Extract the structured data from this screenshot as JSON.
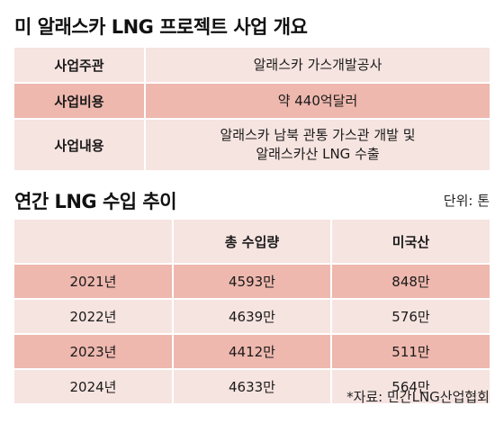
{
  "overview": {
    "title": "미 알래스카 LNG 프로젝트 사업 개요",
    "rows": [
      {
        "label": "사업주관",
        "value_line1": "알래스카 가스개발공사",
        "value_line2": ""
      },
      {
        "label": "사업비용",
        "value_line1": "약 440억달러",
        "value_line2": ""
      },
      {
        "label": "사업내용",
        "value_line1": "알래스카 남북 관통 가스관 개발 및",
        "value_line2": "알래스카산 LNG 수출"
      }
    ]
  },
  "imports": {
    "title": "연간 LNG 수입 추이",
    "unit": "단위: 톤",
    "headers": [
      "",
      "총 수입량",
      "미국산"
    ],
    "rows": [
      {
        "year": "2021년",
        "total": "4593만",
        "us": "848만"
      },
      {
        "year": "2022년",
        "total": "4639만",
        "us": "576만"
      },
      {
        "year": "2023년",
        "total": "4412만",
        "us": "511만"
      },
      {
        "year": "2024년",
        "total": "4633만",
        "us": "564만"
      }
    ],
    "source": "*자료: 민간LNG산업협회"
  },
  "colors": {
    "light_row": "#f6e4e0",
    "dark_row": "#eeb8ae"
  }
}
